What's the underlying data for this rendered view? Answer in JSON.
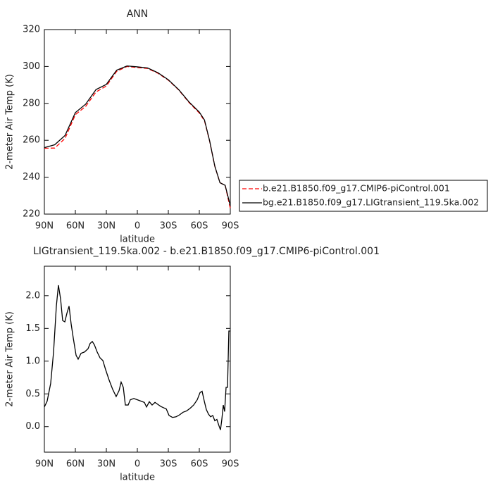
{
  "chart_data": [
    {
      "type": "line",
      "title": "ANN",
      "x_label": "latitude",
      "y_label": "2-meter Air Temp (K)",
      "x": [
        90,
        80,
        70,
        60,
        50,
        40,
        30,
        20,
        10,
        0,
        -10,
        -20,
        -30,
        -40,
        -50,
        -60,
        -65,
        -70,
        -75,
        -80,
        -85,
        -90
      ],
      "series": [
        {
          "name": "b.e21.B1850.f09_g17.CMIP6-piControl.001",
          "color": "#ff0000",
          "style": "dashed",
          "values": [
            255.7,
            255.8,
            261,
            273.9,
            278.4,
            286.2,
            289.4,
            297.4,
            300,
            299.4,
            298.9,
            296.3,
            292.6,
            287.3,
            280.5,
            274.8,
            270.6,
            259.5,
            245.9,
            237,
            235.6,
            223.1
          ]
        },
        {
          "name": "bg.e21.B1850.f09_g17.LIGtransient_119.5ka.002",
          "color": "#000000",
          "style": "solid",
          "values": [
            256,
            257.6,
            262.6,
            275,
            279.6,
            287.5,
            290.3,
            298,
            300.3,
            299.8,
            299.2,
            296.6,
            292.8,
            287.5,
            280.8,
            275.3,
            271,
            259.7,
            246,
            237,
            235.6,
            224.6
          ]
        }
      ],
      "xlim": [
        90,
        -90
      ],
      "xticks": [
        {
          "value": 90,
          "label": "90N"
        },
        {
          "value": 60,
          "label": "60N"
        },
        {
          "value": 30,
          "label": "30N"
        },
        0,
        {
          "value": -30,
          "label": "30S"
        },
        {
          "value": -60,
          "label": "60S"
        },
        {
          "value": -90,
          "label": "90S"
        }
      ],
      "ylim": [
        220,
        320
      ],
      "yticks": [
        220,
        240,
        260,
        280,
        300,
        320
      ],
      "legend": "outside right"
    },
    {
      "type": "line",
      "title": "LIGtransient_119.5ka.002 - b.e21.B1850.f09_g17.CMIP6-piControl.001",
      "x_label": "latitude",
      "y_label": "2-meter Air Temp (K)",
      "x": [
        90,
        87.3,
        83.9,
        81.1,
        78.4,
        76.4,
        74.3,
        72.3,
        70.2,
        68.2,
        66.1,
        64.1,
        62,
        59.3,
        57.3,
        54.5,
        51.1,
        47.7,
        45.7,
        43.6,
        41.6,
        38.9,
        36.1,
        33.4,
        30.7,
        27.3,
        23.9,
        20.5,
        17.7,
        15.7,
        13.6,
        11.6,
        8.9,
        6.8,
        3.4,
        0,
        -3.4,
        -6.8,
        -8.9,
        -11.6,
        -14.3,
        -17.1,
        -19.8,
        -22.5,
        -25.2,
        -28,
        -30.7,
        -34.1,
        -37.5,
        -40.9,
        -44.3,
        -47.7,
        -51.1,
        -54.5,
        -58,
        -60.7,
        -62.7,
        -64.8,
        -66.8,
        -68.9,
        -70.9,
        -73,
        -75,
        -77,
        -79.1,
        -80.5,
        -81.8,
        -83.2,
        -84.5,
        -85.9,
        -87.3,
        -88.6,
        -90
      ],
      "values": [
        0.3,
        0.39,
        0.66,
        1.14,
        1.84,
        2.16,
        1.95,
        1.62,
        1.6,
        1.73,
        1.84,
        1.57,
        1.35,
        1.09,
        1.03,
        1.12,
        1.14,
        1.19,
        1.27,
        1.3,
        1.25,
        1.14,
        1.05,
        1.01,
        0.87,
        0.71,
        0.57,
        0.46,
        0.55,
        0.68,
        0.6,
        0.33,
        0.33,
        0.41,
        0.43,
        0.41,
        0.39,
        0.37,
        0.3,
        0.38,
        0.33,
        0.37,
        0.34,
        0.31,
        0.29,
        0.27,
        0.17,
        0.14,
        0.15,
        0.18,
        0.22,
        0.24,
        0.28,
        0.33,
        0.41,
        0.52,
        0.54,
        0.39,
        0.26,
        0.19,
        0.15,
        0.17,
        0.09,
        0.11,
        0.01,
        -0.05,
        0.11,
        0.33,
        0.23,
        0.6,
        0.6,
        1.46,
        1.46
      ],
      "color": "#000000",
      "xlim": [
        90,
        -90
      ],
      "xticks": [
        {
          "value": 90,
          "label": "90N"
        },
        {
          "value": 60,
          "label": "60N"
        },
        {
          "value": 30,
          "label": "30N"
        },
        0,
        {
          "value": -30,
          "label": "30S"
        },
        {
          "value": -60,
          "label": "60S"
        },
        {
          "value": -90,
          "label": "90S"
        }
      ],
      "ylim": [
        -0.39,
        2.45
      ],
      "yticks": [
        {
          "value": 0,
          "label": "0.0"
        },
        0.5,
        {
          "value": 1,
          "label": "1.0"
        },
        1.5,
        {
          "value": 2,
          "label": "2.0"
        }
      ]
    }
  ]
}
